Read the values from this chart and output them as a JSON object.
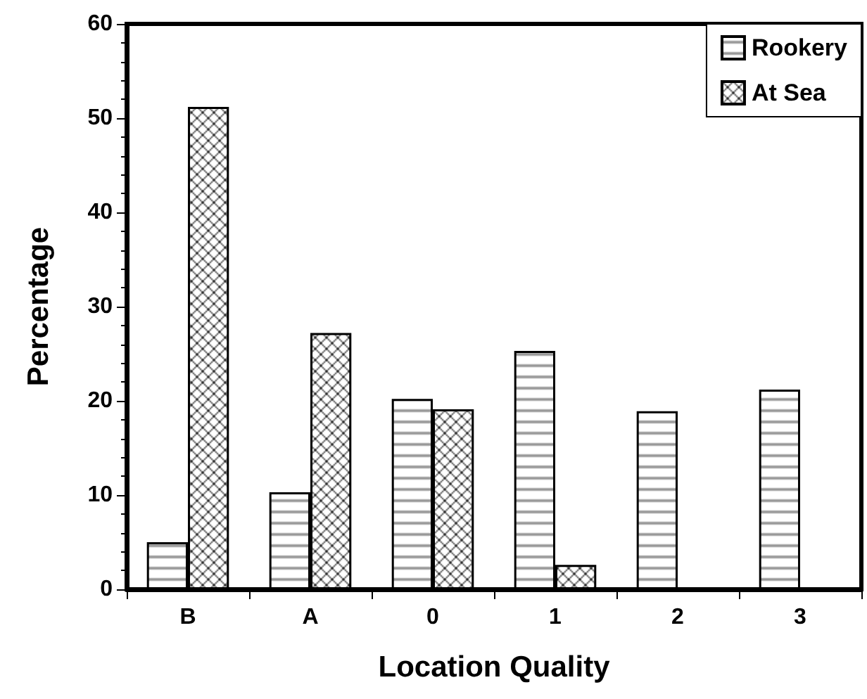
{
  "chart_data": {
    "type": "bar",
    "xlabel": "Location Quality",
    "ylabel": "Percentage",
    "categories": [
      "B",
      "A",
      "0",
      "1",
      "2",
      "3"
    ],
    "series": [
      {
        "name": "Rookery",
        "color": "#000000",
        "values": [
          5,
          10.3,
          20.2,
          25.3,
          18.9,
          21.2
        ]
      },
      {
        "name": "At Sea",
        "color": "#000000",
        "values": [
          51.2,
          27.2,
          19.1,
          2.6,
          0.2,
          0
        ]
      }
    ],
    "ylim": [
      0,
      60
    ],
    "yticks": [
      0,
      10,
      20,
      30,
      40,
      50,
      60
    ],
    "grid": false,
    "legend": "top right"
  }
}
